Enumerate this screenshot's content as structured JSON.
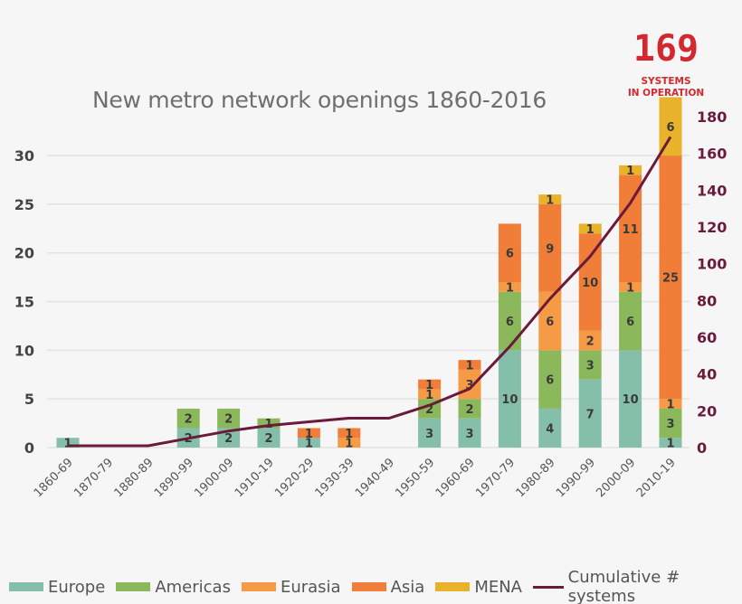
{
  "chart_data": {
    "type": "bar",
    "stacked": true,
    "title": "New metro network openings 1860-2016",
    "annotation": {
      "value": "169",
      "line1": "SYSTEMS",
      "line2": "IN OPERATION"
    },
    "categories": [
      "1860-69",
      "1870-79",
      "1880-89",
      "1890-99",
      "1900-09",
      "1910-19",
      "1920-29",
      "1930-39",
      "1940-49",
      "1950-59",
      "1960-69",
      "1970-79",
      "1980-89",
      "1990-99",
      "2000-09",
      "2010-19"
    ],
    "series": [
      {
        "name": "Europe",
        "color": "#86bfa9",
        "values": [
          1,
          0,
          0,
          2,
          2,
          2,
          1,
          0,
          0,
          3,
          3,
          10,
          4,
          7,
          10,
          1
        ]
      },
      {
        "name": "Americas",
        "color": "#8cb85c",
        "values": [
          0,
          0,
          0,
          2,
          2,
          1,
          0,
          0,
          0,
          2,
          2,
          6,
          6,
          3,
          6,
          3
        ]
      },
      {
        "name": "Eurasia",
        "color": "#f59a45",
        "values": [
          0,
          0,
          0,
          0,
          0,
          0,
          0,
          1,
          0,
          1,
          3,
          1,
          6,
          2,
          1,
          1
        ]
      },
      {
        "name": "Asia",
        "color": "#f07e38",
        "values": [
          0,
          0,
          0,
          0,
          0,
          0,
          1,
          1,
          0,
          1,
          1,
          6,
          9,
          10,
          11,
          25
        ]
      },
      {
        "name": "MENA",
        "color": "#e8b22b",
        "values": [
          0,
          0,
          0,
          0,
          0,
          0,
          0,
          0,
          0,
          0,
          0,
          0,
          1,
          1,
          1,
          6
        ]
      }
    ],
    "line": {
      "name": "Cumulative # systems",
      "color": "#6b1a3c",
      "axis": "right",
      "values": [
        1,
        1,
        1,
        5,
        9,
        12,
        14,
        16,
        16,
        23,
        32,
        55,
        81,
        104,
        133,
        169
      ]
    },
    "y_left": {
      "ticks": [
        0,
        5,
        10,
        15,
        20,
        25,
        30
      ],
      "range": [
        0,
        34
      ]
    },
    "y_right": {
      "ticks": [
        0,
        20,
        40,
        60,
        80,
        100,
        120,
        140,
        160,
        180
      ],
      "range": [
        0,
        180
      ],
      "color": "#6b1a3c"
    },
    "grid": true,
    "legend": "bottom"
  }
}
